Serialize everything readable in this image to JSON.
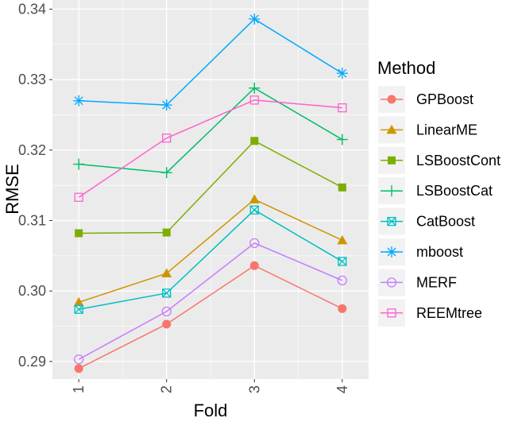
{
  "chart_data": {
    "type": "line",
    "xlabel": "Fold",
    "ylabel": "RMSE",
    "x": [
      1,
      2,
      3,
      4
    ],
    "x_tick_labels": [
      "1",
      "2",
      "3",
      "4"
    ],
    "ylim": [
      0.2875,
      0.3413
    ],
    "y_ticks": [
      0.29,
      0.3,
      0.31,
      0.32,
      0.33,
      0.34
    ],
    "y_tick_labels": [
      "0.29",
      "0.30",
      "0.31",
      "0.32",
      "0.33",
      "0.34"
    ],
    "grid": true,
    "legend_title": "Method",
    "legend_position": "right",
    "series": [
      {
        "name": "GPBoost",
        "color": "#F8766D",
        "marker": "circle-filled",
        "values": [
          0.289,
          0.2953,
          0.3036,
          0.2975
        ]
      },
      {
        "name": "LinearME",
        "color": "#CD9600",
        "marker": "triangle-filled",
        "values": [
          0.2984,
          0.3025,
          0.313,
          0.3072
        ]
      },
      {
        "name": "LSBoostCont",
        "color": "#7CAE00",
        "marker": "square-filled",
        "values": [
          0.3082,
          0.3083,
          0.3213,
          0.3147
        ]
      },
      {
        "name": "LSBoostCat",
        "color": "#00BE67",
        "marker": "plus",
        "values": [
          0.318,
          0.3168,
          0.3288,
          0.3215
        ]
      },
      {
        "name": "CatBoost",
        "color": "#00BFC4",
        "marker": "square-cross",
        "values": [
          0.2974,
          0.2997,
          0.3115,
          0.3042
        ]
      },
      {
        "name": "mboost",
        "color": "#00A9FF",
        "marker": "asterisk",
        "values": [
          0.327,
          0.3264,
          0.3386,
          0.3309
        ]
      },
      {
        "name": "MERF",
        "color": "#C77CFF",
        "marker": "circle-open",
        "values": [
          0.2903,
          0.2971,
          0.3068,
          0.3015
        ]
      },
      {
        "name": "REEMtree",
        "color": "#FF61CC",
        "marker": "square-open",
        "values": [
          0.3133,
          0.3217,
          0.3271,
          0.326
        ]
      }
    ]
  }
}
